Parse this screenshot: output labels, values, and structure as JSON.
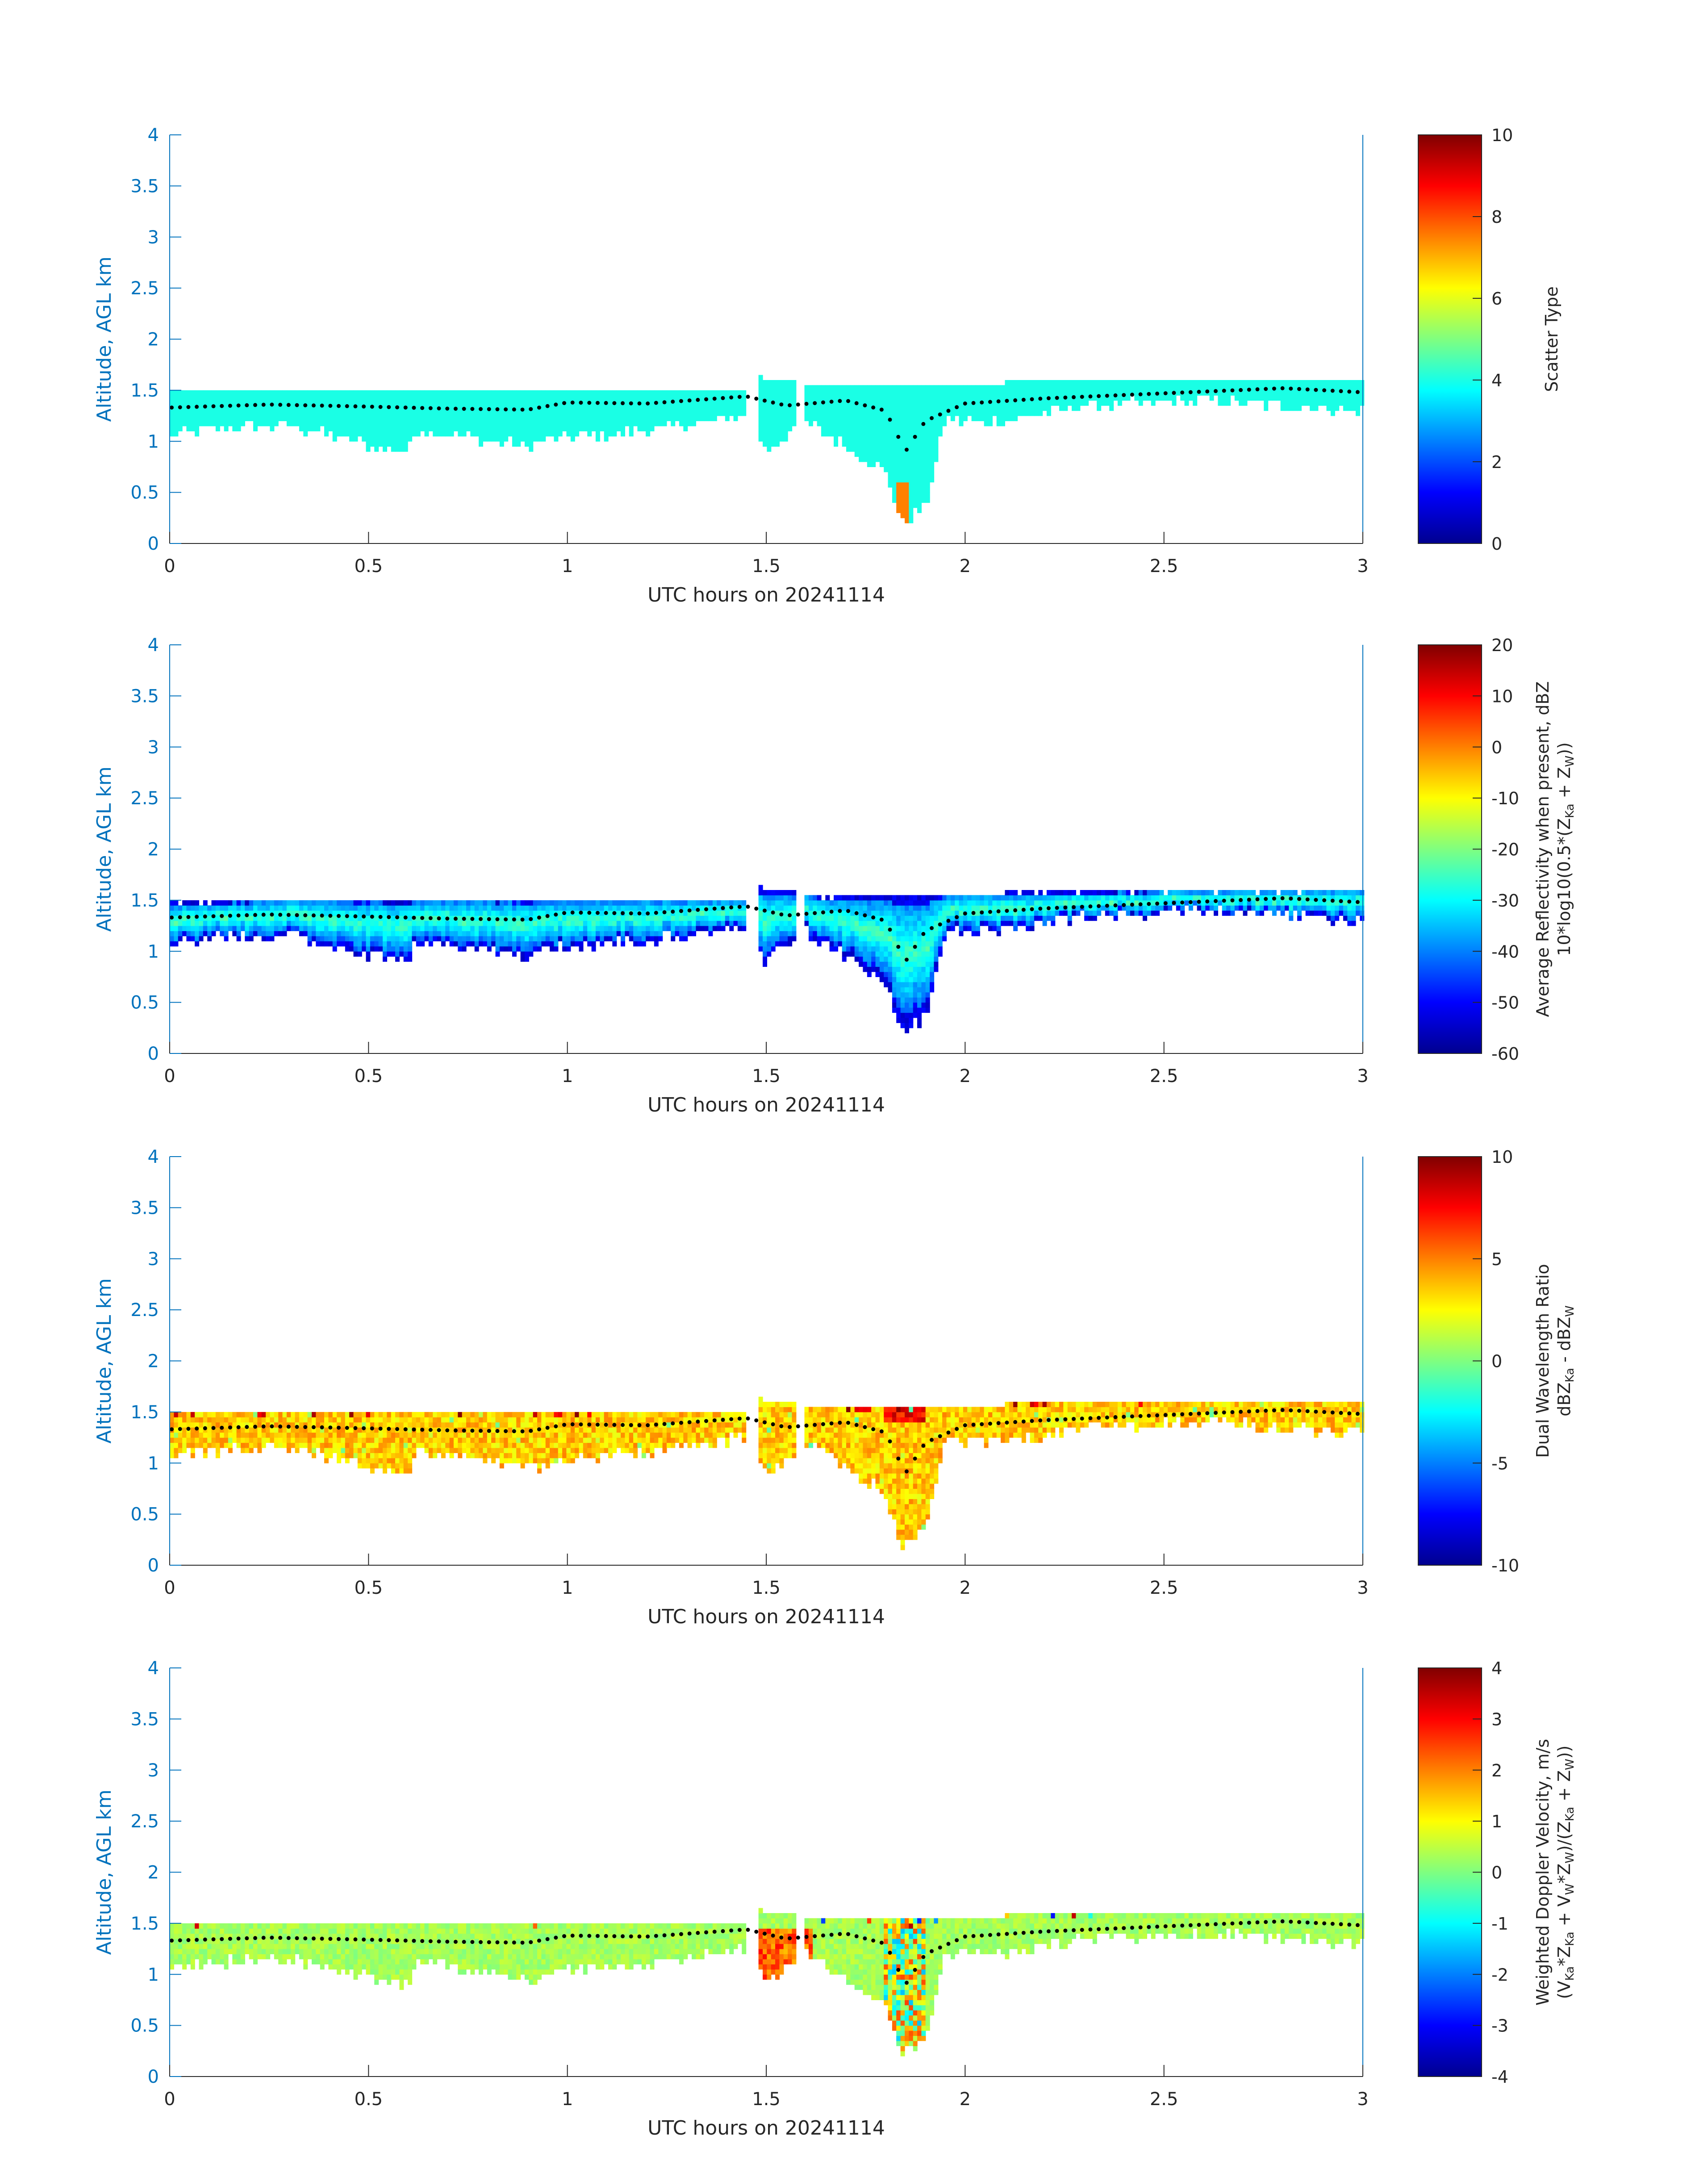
{
  "chart_data": [
    {
      "type": "heatmap",
      "panel": 1,
      "xlabel": "UTC hours on 20241114",
      "ylabel": "Altitude, AGL km",
      "xlim": [
        0,
        3
      ],
      "ylim": [
        0,
        4
      ],
      "xticks": [
        "0",
        "0.5",
        "1",
        "1.5",
        "2",
        "2.5",
        "3"
      ],
      "yticks": [
        "0",
        "0.5",
        "1",
        "1.5",
        "2",
        "2.5",
        "3",
        "3.5",
        "4"
      ],
      "colorbar": {
        "label": "Scatter Type",
        "clim": [
          0,
          10
        ],
        "ticks": [
          "0",
          "2",
          "4",
          "6",
          "8",
          "10"
        ],
        "colormap": "jet"
      },
      "field_value": 4,
      "anomaly_value": 7.5
    },
    {
      "type": "heatmap",
      "panel": 2,
      "xlabel": "UTC hours on 20241114",
      "ylabel": "Altitude, AGL km",
      "xlim": [
        0,
        3
      ],
      "ylim": [
        0,
        4
      ],
      "xticks": [
        "0",
        "0.5",
        "1",
        "1.5",
        "2",
        "2.5",
        "3"
      ],
      "yticks": [
        "0",
        "0.5",
        "1",
        "1.5",
        "2",
        "2.5",
        "3",
        "3.5",
        "4"
      ],
      "colorbar": {
        "label_line1": "Average Reflectivity when present, dBZ",
        "label_line2_parts": [
          "10*log10(0.5*(Z",
          "Ka",
          " + Z",
          "W",
          "))"
        ],
        "clim": [
          -60,
          20
        ],
        "ticks": [
          "-60",
          "-50",
          "-40",
          "-30",
          "-20",
          "-10",
          "0",
          "10",
          "20"
        ],
        "colormap": "jet"
      },
      "typical_range": [
        -50,
        -25
      ]
    },
    {
      "type": "heatmap",
      "panel": 3,
      "xlabel": "UTC hours on 20241114",
      "ylabel": "Altitude, AGL km",
      "xlim": [
        0,
        3
      ],
      "ylim": [
        0,
        4
      ],
      "xticks": [
        "0",
        "0.5",
        "1",
        "1.5",
        "2",
        "2.5",
        "3"
      ],
      "yticks": [
        "0",
        "0.5",
        "1",
        "1.5",
        "2",
        "2.5",
        "3",
        "3.5",
        "4"
      ],
      "colorbar": {
        "label_line1": "Dual Wavelength Ratio",
        "label_line2_parts": [
          "dBZ",
          "Ka",
          " - dBZ",
          "W",
          ""
        ],
        "clim": [
          -10,
          10
        ],
        "ticks": [
          "-10",
          "-5",
          "0",
          "5",
          "10"
        ],
        "colormap": "jet"
      },
      "typical_range": [
        2,
        5
      ]
    },
    {
      "type": "heatmap",
      "panel": 4,
      "xlabel": "UTC hours on 20241114",
      "ylabel": "Altitude, AGL km",
      "xlim": [
        0,
        3
      ],
      "ylim": [
        0,
        4
      ],
      "xticks": [
        "0",
        "0.5",
        "1",
        "1.5",
        "2",
        "2.5",
        "3"
      ],
      "yticks": [
        "0",
        "0.5",
        "1",
        "1.5",
        "2",
        "2.5",
        "3",
        "3.5",
        "4"
      ],
      "colorbar": {
        "label_line1": "Weighted Doppler Velocity, m/s",
        "label_line2_parts": [
          "(V",
          "Ka",
          "*Z",
          "Ka",
          " + V",
          "W",
          "*Z",
          "W",
          ")/(Z",
          "Ka",
          " + Z",
          "W",
          "))"
        ],
        "clim": [
          -4,
          4
        ],
        "ticks": [
          "-4",
          "-3",
          "-2",
          "-1",
          "0",
          "1",
          "2",
          "3",
          "4"
        ],
        "colormap": "jet"
      },
      "typical_range": [
        0,
        1
      ]
    }
  ],
  "cloud_layer": {
    "top_km": [
      [
        0,
        1.48
      ],
      [
        0.3,
        1.52
      ],
      [
        1.45,
        1.52
      ],
      [
        1.48,
        1.63
      ],
      [
        1.57,
        1.58
      ],
      [
        1.65,
        1.55
      ],
      [
        2.0,
        1.57
      ],
      [
        2.2,
        1.58
      ],
      [
        2.5,
        1.6
      ],
      [
        3.0,
        1.62
      ]
    ],
    "base_km": [
      [
        0,
        1.05
      ],
      [
        0.1,
        1.12
      ],
      [
        0.3,
        1.15
      ],
      [
        0.6,
        0.88
      ],
      [
        0.62,
        1.12
      ],
      [
        0.9,
        0.95
      ],
      [
        1.0,
        1.05
      ],
      [
        1.2,
        1.1
      ],
      [
        1.45,
        1.25
      ],
      [
        1.5,
        0.9
      ],
      [
        1.6,
        1.2
      ],
      [
        1.8,
        0.7
      ],
      [
        1.84,
        0.2
      ],
      [
        1.9,
        0.35
      ],
      [
        1.95,
        1.2
      ],
      [
        2.1,
        1.2
      ],
      [
        2.3,
        1.35
      ],
      [
        2.6,
        1.4
      ],
      [
        3.0,
        1.3
      ]
    ],
    "gaps_hours": [
      [
        1.45,
        1.48
      ],
      [
        1.58,
        1.6
      ]
    ],
    "top_height_dots_km": [
      [
        0,
        1.33
      ],
      [
        0.25,
        1.36
      ],
      [
        0.5,
        1.34
      ],
      [
        0.7,
        1.32
      ],
      [
        0.9,
        1.31
      ],
      [
        1.0,
        1.38
      ],
      [
        1.2,
        1.37
      ],
      [
        1.45,
        1.44
      ],
      [
        1.55,
        1.35
      ],
      [
        1.7,
        1.4
      ],
      [
        1.8,
        1.3
      ],
      [
        1.85,
        0.9
      ],
      [
        1.9,
        1.2
      ],
      [
        2.0,
        1.37
      ],
      [
        2.2,
        1.42
      ],
      [
        2.5,
        1.47
      ],
      [
        2.8,
        1.52
      ],
      [
        3.0,
        1.48
      ]
    ]
  }
}
